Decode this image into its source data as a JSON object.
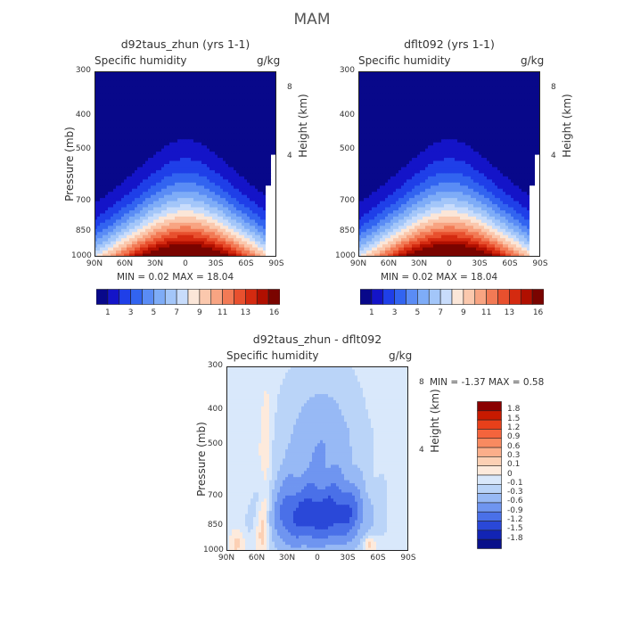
{
  "figure": {
    "title": "MAM"
  },
  "chart_data": [
    {
      "type": "heatmap",
      "title": "d92taus_zhun (yrs 1-1)",
      "subtitle_left": "Specific humidity",
      "subtitle_right": "g/kg",
      "ylabel": "Pressure (mb)",
      "ylabel_right": "Height (km)",
      "x_ticks": [
        "90N",
        "60N",
        "30N",
        "0",
        "30S",
        "60S",
        "90S"
      ],
      "y_ticks": [
        "300",
        "400",
        "500",
        "700",
        "850",
        "1000"
      ],
      "y_ticks_right": [
        "8",
        "4"
      ],
      "stats": "MIN =   0.02   MAX =   18.04",
      "colorbar_labels": [
        "1",
        "3",
        "5",
        "7",
        "9",
        "11",
        "13",
        "16"
      ],
      "colorbar_colors": [
        "#08088a",
        "#1414c8",
        "#1f3fe8",
        "#3264f0",
        "#5a8cf5",
        "#7eacf7",
        "#a3c6f9",
        "#c8dcfb",
        "#fbe6d8",
        "#fbc8ad",
        "#f8a482",
        "#f27a55",
        "#e8502e",
        "#d42a10",
        "#b00f00",
        "#7a0400"
      ],
      "legend_position": "bottom",
      "contour_levels": [
        1,
        2,
        3,
        4,
        5,
        6,
        7,
        8,
        9,
        10,
        11,
        12,
        13,
        14,
        15,
        16
      ],
      "field_max": 18.04,
      "field_min": 0.02
    },
    {
      "type": "heatmap",
      "title": "dflt092 (yrs 1-1)",
      "subtitle_left": "Specific humidity",
      "subtitle_right": "g/kg",
      "ylabel": "",
      "ylabel_right": "Height (km)",
      "x_ticks": [
        "90N",
        "60N",
        "30N",
        "0",
        "30S",
        "60S",
        "90S"
      ],
      "y_ticks": [
        "300",
        "400",
        "500",
        "700",
        "850",
        "1000"
      ],
      "y_ticks_right": [
        "8",
        "4"
      ],
      "stats": "MIN =   0.02   MAX =   18.04",
      "colorbar_labels": [
        "1",
        "3",
        "5",
        "7",
        "9",
        "11",
        "13",
        "16"
      ],
      "colorbar_colors": [
        "#08088a",
        "#1414c8",
        "#1f3fe8",
        "#3264f0",
        "#5a8cf5",
        "#7eacf7",
        "#a3c6f9",
        "#c8dcfb",
        "#fbe6d8",
        "#fbc8ad",
        "#f8a482",
        "#f27a55",
        "#e8502e",
        "#d42a10",
        "#b00f00",
        "#7a0400"
      ],
      "legend_position": "bottom",
      "contour_levels": [
        1,
        2,
        3,
        4,
        5,
        6,
        7,
        8,
        9,
        10,
        11,
        12,
        13,
        14,
        15,
        16
      ],
      "field_max": 18.04,
      "field_min": 0.02
    },
    {
      "type": "heatmap",
      "title": "d92taus_zhun - dflt092",
      "subtitle_left": "Specific humidity",
      "subtitle_right": "g/kg",
      "ylabel": "Pressure (mb)",
      "ylabel_right": "Height (km)",
      "x_ticks": [
        "90N",
        "60N",
        "30N",
        "0",
        "30S",
        "60S",
        "90S"
      ],
      "y_ticks": [
        "300",
        "400",
        "500",
        "700",
        "850",
        "1000"
      ],
      "y_ticks_right": [
        "8",
        "4"
      ],
      "stats": "MIN =   -1.37   MAX =   0.58",
      "colorbar_labels": [
        "1.8",
        "1.5",
        "1.2",
        "0.9",
        "0.6",
        "0.3",
        "0.1",
        "0",
        "-0.1",
        "-0.3",
        "-0.6",
        "-0.9",
        "-1.2",
        "-1.5",
        "-1.8"
      ],
      "colorbar_colors": [
        "#8a0000",
        "#c81a00",
        "#e8401a",
        "#f4643c",
        "#f88a60",
        "#fbae8a",
        "#fcd0b4",
        "#fdeadc",
        "#d9e8fb",
        "#bad4f8",
        "#97b9f5",
        "#6f95f0",
        "#4a70e8",
        "#2a48d8",
        "#1224b4",
        "#08108a"
      ],
      "legend_position": "right",
      "field_max": 0.58,
      "field_min": -1.37
    }
  ]
}
